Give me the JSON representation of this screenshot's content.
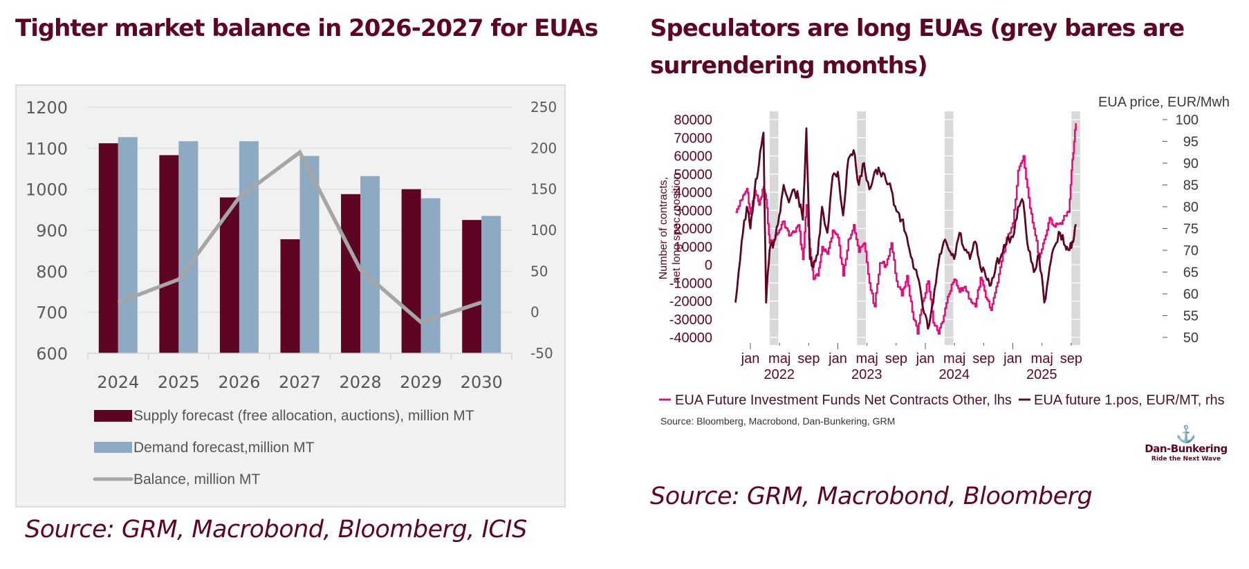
{
  "left_panel": {
    "title": "Tighter market balance in 2026-2027 for EUAs",
    "source": "Source: GRM, Macrobond, Bloomberg, ICIS"
  },
  "right_panel": {
    "title": "Speculators are long EUAs (grey bares are surrendering months)",
    "source_small": "Source: Bloomberg, Macrobond, Dan-Bunkering, GRM",
    "source": "Source: GRM, Macrobond, Bloomberg"
  },
  "logo": {
    "name": "Dan-Bunkering",
    "tagline": "Ride the Next Wave",
    "icon": "anchor-icon"
  },
  "colors": {
    "brand": "#5e0425",
    "supply": "#5e0425",
    "demand": "#8eaac2",
    "balance": "#a6a6a6",
    "funds": "#e0107a",
    "price": "#5e0425",
    "shade": "#d9d9d9"
  },
  "chart_data": [
    {
      "type": "bar",
      "title": "Tighter market balance in 2026-2027 for EUAs",
      "categories": [
        "2024",
        "2025",
        "2026",
        "2027",
        "2028",
        "2029",
        "2030"
      ],
      "series": [
        {
          "name": "Supply forecast (free allocation, auctions), million MT",
          "axis": "left",
          "type": "bar",
          "values": [
            1112,
            1083,
            980,
            878,
            988,
            1000,
            925
          ]
        },
        {
          "name": "Demand forecast,million  MT",
          "axis": "left",
          "type": "bar",
          "values": [
            1127,
            1117,
            1117,
            1081,
            1032,
            978,
            935
          ]
        },
        {
          "name": "Balance, million MT",
          "axis": "right",
          "type": "line",
          "values": [
            12,
            40,
            140,
            195,
            52,
            -12,
            12
          ]
        }
      ],
      "ylim": [
        600,
        1200
      ],
      "yticks": [
        "1200",
        "1100",
        "1000",
        "900",
        "800",
        "700",
        "600"
      ],
      "y2lim": [
        -50,
        250
      ],
      "y2ticks": [
        "250",
        "200",
        "150",
        "100",
        "50",
        "0",
        "-50"
      ],
      "xlabel": "",
      "ylabel": "",
      "grid": true,
      "legend_position": "bottom"
    },
    {
      "type": "line",
      "title": "Speculators are long EUAs (grey bares are surrendering months)",
      "ylabel": "Number of contracts, net long spec. position",
      "y2label": "EUA price, EUR/Mwh",
      "ylim": [
        -40000,
        80000
      ],
      "yticks": [
        "80000",
        "70000",
        "60000",
        "50000",
        "40000",
        "30000",
        "20000",
        "10000",
        "0",
        "-10000",
        "-20000",
        "-30000",
        "-40000"
      ],
      "y2lim": [
        50,
        100
      ],
      "y2ticks": [
        "100",
        "95",
        "90",
        "85",
        "80",
        "75",
        "70",
        "65",
        "60",
        "55",
        "50"
      ],
      "xticks": [
        "jan",
        "maj",
        "sep",
        "jan",
        "maj",
        "sep",
        "jan",
        "maj",
        "sep",
        "jan",
        "maj",
        "sep"
      ],
      "xyears": [
        "2022",
        "2023",
        "2024",
        "2025"
      ],
      "shaded_periods": [
        "Apr 2022",
        "Apr 2023",
        "Apr 2024",
        "Sep 2025"
      ],
      "x": [
        2021.83,
        2021.9,
        2021.96,
        2022.0,
        2022.05,
        2022.1,
        2022.15,
        2022.18,
        2022.22,
        2022.27,
        2022.33,
        2022.38,
        2022.44,
        2022.5,
        2022.55,
        2022.6,
        2022.64,
        2022.68,
        2022.72,
        2022.77,
        2022.82,
        2022.88,
        2022.94,
        2023.0,
        2023.06,
        2023.12,
        2023.18,
        2023.24,
        2023.3,
        2023.36,
        2023.42,
        2023.48,
        2023.55,
        2023.61,
        2023.67,
        2023.73,
        2023.79,
        2023.85,
        2023.91,
        2023.97,
        2024.03,
        2024.09,
        2024.15,
        2024.21,
        2024.27,
        2024.33,
        2024.39,
        2024.45,
        2024.51,
        2024.57,
        2024.63,
        2024.69,
        2024.75,
        2024.81,
        2024.87,
        2024.93,
        2025.0,
        2025.06,
        2025.12,
        2025.18,
        2025.24,
        2025.3,
        2025.36,
        2025.42,
        2025.48,
        2025.54,
        2025.6,
        2025.64,
        2025.68,
        2025.72
      ],
      "series": [
        {
          "name": "EUA Future Investment Funds Net Contracts Other, lhs",
          "axis": "left",
          "values": [
            29000,
            36000,
            42000,
            28000,
            41000,
            33000,
            43000,
            36000,
            12000,
            14000,
            19000,
            24000,
            16000,
            18000,
            22000,
            3000,
            33000,
            9000,
            -8000,
            -6000,
            10000,
            6000,
            19000,
            15000,
            -6000,
            14000,
            22000,
            7000,
            12000,
            -10000,
            -23000,
            1000,
            0,
            12000,
            -9000,
            -17000,
            -6000,
            -26000,
            -38000,
            -20000,
            -9000,
            -32000,
            -38000,
            -28000,
            -16000,
            -8000,
            -15000,
            -12000,
            -19000,
            -23000,
            -7000,
            -18000,
            -25000,
            -12000,
            2000,
            15000,
            23000,
            52000,
            60000,
            37000,
            20000,
            4000,
            14000,
            26000,
            21000,
            23000,
            27000,
            29000,
            58000,
            78000
          ]
        },
        {
          "name": "EUA future 1.pos, EUR/MT, rhs",
          "axis": "right",
          "values": [
            58,
            72,
            80,
            75,
            84,
            90,
            97,
            58,
            70,
            72,
            78,
            85,
            81,
            84,
            82,
            77,
            98,
            68,
            66,
            69,
            80,
            74,
            87,
            88,
            78,
            91,
            93,
            85,
            90,
            84,
            88,
            88,
            86,
            84,
            79,
            77,
            73,
            68,
            64,
            57,
            52,
            58,
            67,
            72,
            70,
            68,
            74,
            70,
            68,
            72,
            66,
            64,
            62,
            67,
            69,
            72,
            73,
            80,
            81,
            70,
            65,
            69,
            58,
            66,
            71,
            74,
            71,
            70,
            72,
            76
          ]
        }
      ],
      "legend_position": "bottom"
    }
  ]
}
